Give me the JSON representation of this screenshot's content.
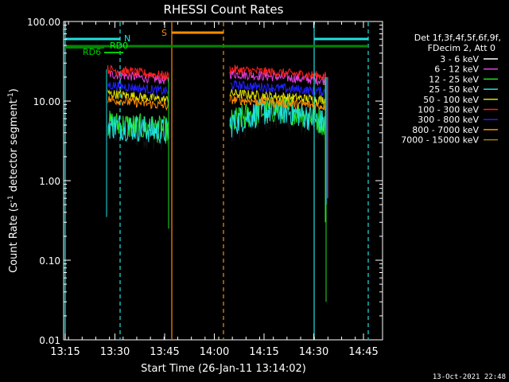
{
  "chart_data": {
    "type": "line",
    "title": "RHESSI Count Rates",
    "xlabel": "Start Time (26-Jan-11 13:14:02)",
    "ylabel_main": "Count Rate (s",
    "ylabel_sup": "-1",
    "ylabel_mid": " detector segment",
    "ylabel_end": ")",
    "y_scale": "log",
    "ylim": [
      0.01,
      100
    ],
    "xlim_minutes": [
      13.0,
      14.9
    ],
    "x_ticks": [
      "13:15",
      "13:30",
      "13:45",
      "14:00",
      "14:15",
      "14:30",
      "14:45"
    ],
    "y_ticks": [
      "100.00",
      "10.00",
      "1.00",
      "0.10",
      "0.01"
    ],
    "timestamp": "13-Oct-2021 22:48",
    "legend": {
      "header1": "Det 1f,3f,4f,5f,6f,9f,",
      "header2": "FDecim 2, Att 0",
      "placement": "right"
    },
    "series": [
      {
        "name": "3 - 6 keV",
        "color": "#000000",
        "level": 4.2
      },
      {
        "name": "6 - 12 keV",
        "color": "#e040e0",
        "level": 22
      },
      {
        "name": "12 - 25 keV",
        "color": "#20e020",
        "level": 5.2
      },
      {
        "name": "25 - 50 keV",
        "color": "#20e0e0",
        "level": 5.0
      },
      {
        "name": "50 - 100 keV",
        "color": "#e0e000",
        "level": 12.5
      },
      {
        "name": "100 - 300 keV",
        "color": "#ff2020",
        "level": 25
      },
      {
        "name": "300 - 800 keV",
        "color": "#2020ff",
        "level": 16
      },
      {
        "name": "800 - 7000 keV",
        "color": "#ff8c00",
        "level": 10.5
      },
      {
        "name": "7000 - 15000 keV",
        "color": "#a08000",
        "level": 0
      }
    ],
    "annotations": {
      "s_label": "S",
      "n_label": "N",
      "rd0_label": "RD0",
      "rd6_label": "RD6"
    }
  }
}
